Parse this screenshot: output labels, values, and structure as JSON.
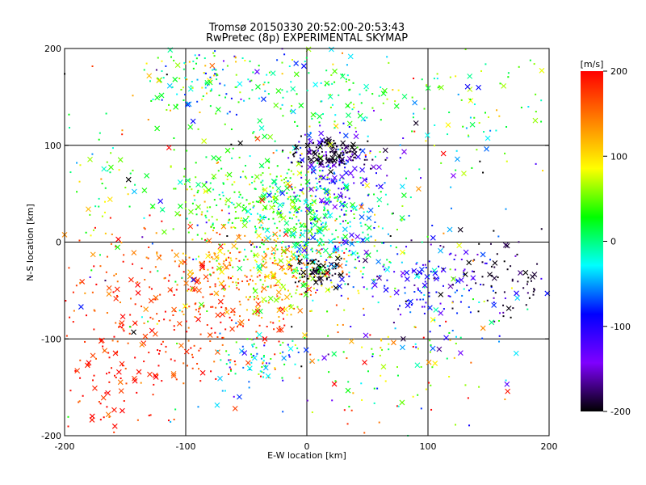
{
  "chart_data": {
    "type": "scatter",
    "title_line1": "Tromsø 20150330 20:52:00-20:53:43",
    "title_line2": "RwPretec (8p) EXPERIMENTAL SKYMAP",
    "xlabel": "E-W location [km]",
    "ylabel": "N-S location [km]",
    "xlim": [
      -200,
      200
    ],
    "ylim": [
      -200,
      200
    ],
    "x_ticks": [
      "-200",
      "-100",
      "0",
      "100",
      "200"
    ],
    "y_ticks": [
      "-200",
      "-100",
      "0",
      "100",
      "200"
    ],
    "grid": true,
    "grid_lines": [
      -100,
      0,
      100
    ],
    "markers": [
      "dot",
      "x"
    ],
    "colorbar": {
      "label": "[m/s]",
      "range": [
        -200,
        200
      ],
      "ticks": [
        "-200",
        "-100",
        "0",
        "100",
        "200"
      ],
      "colors": [
        "#000000",
        "#7f00ff",
        "#0000ff",
        "#00ffff",
        "#00ff00",
        "#ffff00",
        "#ff7f00",
        "#ff0000"
      ]
    },
    "clusters": [
      {
        "cx": -95,
        "cy": -65,
        "sx": 55,
        "sy": 40,
        "v": 175,
        "vs": 25,
        "n": 320
      },
      {
        "cx": -45,
        "cy": -25,
        "sx": 35,
        "sy": 22,
        "v": 130,
        "vs": 30,
        "n": 180
      },
      {
        "cx": -15,
        "cy": -35,
        "sx": 25,
        "sy": 25,
        "v": 90,
        "vs": 35,
        "n": 120
      },
      {
        "cx": -45,
        "cy": 45,
        "sx": 40,
        "sy": 25,
        "v": 35,
        "vs": 30,
        "n": 260
      },
      {
        "cx": -10,
        "cy": 20,
        "sx": 30,
        "sy": 35,
        "v": 20,
        "vs": 30,
        "n": 170
      },
      {
        "cx": 25,
        "cy": 5,
        "sx": 30,
        "sy": 30,
        "v": -30,
        "vs": 35,
        "n": 220
      },
      {
        "cx": 25,
        "cy": 75,
        "sx": 22,
        "sy": 22,
        "v": -110,
        "vs": 25,
        "n": 150
      },
      {
        "cx": 20,
        "cy": 92,
        "sx": 18,
        "sy": 8,
        "v": -195,
        "vs": 10,
        "n": 110
      },
      {
        "cx": 10,
        "cy": -32,
        "sx": 10,
        "sy": 8,
        "v": -195,
        "vs": 8,
        "n": 70
      },
      {
        "cx": 105,
        "cy": -45,
        "sx": 35,
        "sy": 25,
        "v": -110,
        "vs": 40,
        "n": 160
      },
      {
        "cx": 160,
        "cy": -35,
        "sx": 25,
        "sy": 25,
        "v": -195,
        "vs": 10,
        "n": 60
      },
      {
        "cx": -80,
        "cy": 170,
        "sx": 30,
        "sy": 20,
        "v": 0,
        "vs": 70,
        "n": 140
      },
      {
        "cx": 30,
        "cy": 150,
        "sx": 40,
        "sy": 25,
        "v": 20,
        "vs": 40,
        "n": 120
      },
      {
        "cx": 150,
        "cy": 150,
        "sx": 45,
        "sy": 40,
        "v": 30,
        "vs": 50,
        "n": 70
      },
      {
        "cx": -160,
        "cy": -150,
        "sx": 30,
        "sy": 35,
        "v": 185,
        "vs": 20,
        "n": 90
      },
      {
        "cx": -40,
        "cy": -120,
        "sx": 20,
        "sy": 15,
        "v": -20,
        "vs": 60,
        "n": 70
      },
      {
        "cx": 70,
        "cy": -120,
        "sx": 40,
        "sy": 40,
        "v": 60,
        "vs": 90,
        "n": 90
      },
      {
        "cx": -170,
        "cy": 60,
        "sx": 20,
        "sy": 35,
        "v": 40,
        "vs": 40,
        "n": 50
      },
      {
        "cx": 0,
        "cy": 0,
        "sx": 120,
        "sy": 120,
        "v": 0,
        "vs": 110,
        "n": 300
      }
    ]
  }
}
